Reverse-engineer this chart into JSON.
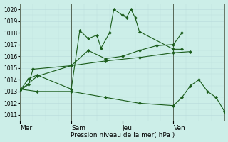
{
  "background_color": "#cceee8",
  "grid_color": "#bbdddd",
  "line_color": "#1a5c1a",
  "marker_color": "#1a5c1a",
  "xlabel": "Pression niveau de la mer( hPa )",
  "ylim": [
    1010.5,
    1020.5
  ],
  "yticks": [
    1011,
    1012,
    1013,
    1014,
    1015,
    1016,
    1017,
    1018,
    1019,
    1020
  ],
  "xlim": [
    0,
    96
  ],
  "xtick_positions": [
    0,
    24,
    48,
    72
  ],
  "xtick_labels": [
    "Mer",
    "Sam",
    "Jeu",
    "Ven"
  ],
  "vline_positions": [
    0,
    24,
    48,
    72
  ],
  "series1_x": [
    0,
    4,
    8,
    24,
    28,
    32,
    36,
    38,
    42,
    44,
    48,
    50,
    52,
    54,
    56,
    72,
    76
  ],
  "series1_y": [
    1013.1,
    1014.1,
    1014.4,
    1013.2,
    1018.2,
    1017.5,
    1017.8,
    1016.7,
    1018.0,
    1020.0,
    1019.5,
    1019.3,
    1020.0,
    1019.3,
    1018.1,
    1016.6,
    1016.6
  ],
  "series2_x": [
    0,
    4,
    6,
    24,
    32,
    40,
    48,
    56,
    64,
    72,
    76
  ],
  "series2_y": [
    1013.1,
    1013.6,
    1014.9,
    1015.2,
    1016.5,
    1015.8,
    1016.0,
    1016.5,
    1016.9,
    1017.0,
    1018.0
  ],
  "series3_x": [
    0,
    8,
    24,
    40,
    56,
    72,
    80
  ],
  "series3_y": [
    1013.1,
    1014.3,
    1015.2,
    1015.6,
    1015.9,
    1016.3,
    1016.4
  ],
  "series4_x": [
    0,
    8,
    24,
    40,
    56,
    72,
    76,
    80,
    84,
    88,
    92,
    96
  ],
  "series4_y": [
    1013.2,
    1013.0,
    1013.0,
    1012.5,
    1012.0,
    1011.8,
    1012.5,
    1013.5,
    1014.0,
    1013.0,
    1012.5,
    1011.3
  ]
}
